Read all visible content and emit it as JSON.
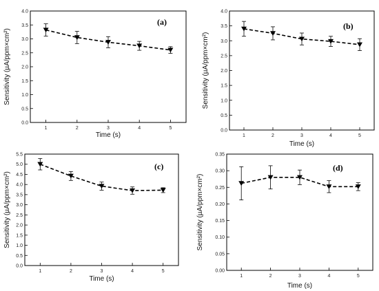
{
  "chart_data": [
    {
      "type": "line",
      "panel_label": "(a)",
      "xlabel": "Time (s)",
      "ylabel": "Sensitivity (µA/ppm×cm²)",
      "x": [
        1,
        2,
        3,
        4,
        5
      ],
      "y": [
        3.32,
        3.05,
        2.88,
        2.75,
        2.6
      ],
      "yerr": [
        0.22,
        0.22,
        0.2,
        0.16,
        0.12
      ],
      "xticks": [
        "1",
        "2",
        "3",
        "4",
        "5"
      ],
      "yticks": [
        "0.0",
        "0.5",
        "1.0",
        "1.5",
        "2.0",
        "2.5",
        "3.0",
        "3.5",
        "4.0"
      ],
      "ylim": [
        0,
        4.0
      ],
      "xlim": [
        0.5,
        5.5
      ],
      "marker": "down-triangle",
      "line_style": "dashed",
      "color": "#000000"
    },
    {
      "type": "line",
      "panel_label": "(b)",
      "xlabel": "Time (s)",
      "ylabel": "Sensitivity (µA/ppm×cm²)",
      "x": [
        1,
        2,
        3,
        4,
        5
      ],
      "y": [
        3.4,
        3.25,
        3.06,
        2.98,
        2.87
      ],
      "yerr": [
        0.25,
        0.22,
        0.2,
        0.17,
        0.2
      ],
      "xticks": [
        "1",
        "2",
        "3",
        "4",
        "5"
      ],
      "yticks": [
        "0.0",
        "0.5",
        "1.0",
        "1.5",
        "2.0",
        "2.5",
        "3.0",
        "3.5",
        "4.0"
      ],
      "ylim": [
        0,
        4.0
      ],
      "xlim": [
        0.5,
        5.5
      ],
      "marker": "down-triangle",
      "line_style": "dashed",
      "color": "#000000"
    },
    {
      "type": "line",
      "panel_label": "(c)",
      "xlabel": "Time (s)",
      "ylabel": "Sensitivity (µA/ppm×cm²)",
      "x": [
        1,
        2,
        3,
        4,
        5
      ],
      "y": [
        5.0,
        4.42,
        3.92,
        3.7,
        3.72
      ],
      "yerr": [
        0.28,
        0.22,
        0.2,
        0.18,
        0.12
      ],
      "xticks": [
        "1",
        "2",
        "3",
        "4",
        "5"
      ],
      "yticks": [
        "0.0",
        "0.5",
        "1.0",
        "1.5",
        "2.0",
        "2.5",
        "3.0",
        "3.5",
        "4.0",
        "4.5",
        "5.0",
        "5.5"
      ],
      "ylim": [
        0,
        5.5
      ],
      "xlim": [
        0.5,
        5.5
      ],
      "marker": "down-triangle",
      "line_style": "dashed",
      "color": "#000000"
    },
    {
      "type": "line",
      "panel_label": "(d)",
      "xlabel": "Time (s)",
      "ylabel": "Sensitivity (µA/ppm×cm²)",
      "x": [
        1,
        2,
        3,
        4,
        5
      ],
      "y": [
        0.262,
        0.28,
        0.28,
        0.252,
        0.252
      ],
      "yerr": [
        0.05,
        0.035,
        0.022,
        0.018,
        0.012
      ],
      "xticks": [
        "1",
        "2",
        "3",
        "4",
        "5"
      ],
      "yticks": [
        "0.00",
        "0.05",
        "0.10",
        "0.15",
        "0.20",
        "0.25",
        "0.30",
        "0.35"
      ],
      "ylim": [
        0,
        0.35
      ],
      "xlim": [
        0.5,
        5.5
      ],
      "marker": "down-triangle",
      "line_style": "dashed",
      "color": "#000000"
    }
  ]
}
